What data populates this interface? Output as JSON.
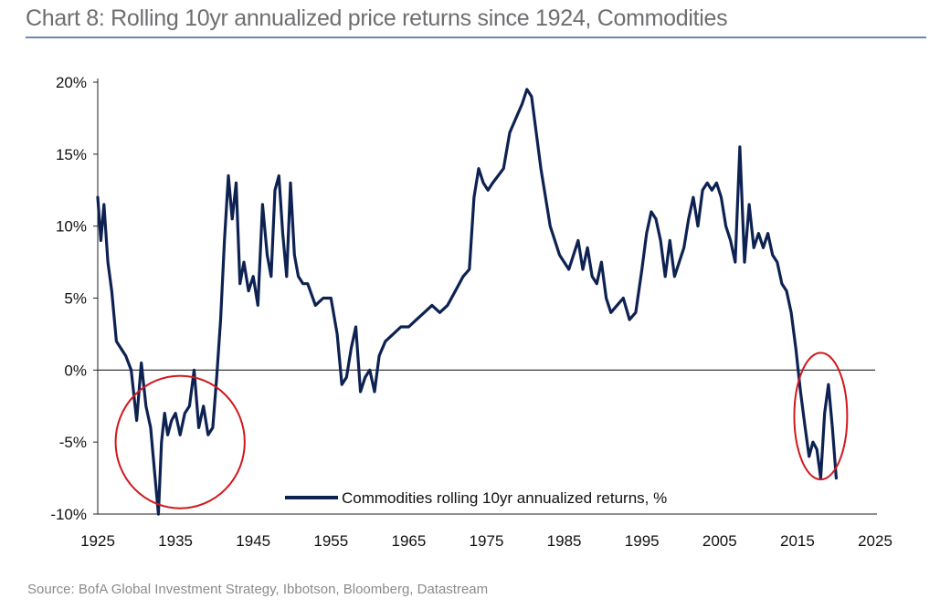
{
  "chart_data": {
    "type": "line",
    "title": "Chart 8: Rolling 10yr annualized price returns since 1924, Commodities",
    "source": "Source: BofA Global Investment Strategy, Ibbotson, Bloomberg, Datastream",
    "xlabel": "",
    "ylabel": "",
    "xlim": [
      1925,
      2025
    ],
    "ylim": [
      -10,
      20
    ],
    "x_ticks": [
      1925,
      1935,
      1945,
      1955,
      1965,
      1975,
      1985,
      1995,
      2005,
      2015,
      2025
    ],
    "y_ticks": [
      {
        "value": 20,
        "label": "20%"
      },
      {
        "value": 15,
        "label": "15%"
      },
      {
        "value": 10,
        "label": "10%"
      },
      {
        "value": 5,
        "label": "5%"
      },
      {
        "value": 0,
        "label": "0%"
      },
      {
        "value": -5,
        "label": "-5%"
      },
      {
        "value": -10,
        "label": "-10%"
      }
    ],
    "legend": "bottom-center",
    "series": [
      {
        "name": "Commodities rolling 10yr annualized returns, %",
        "color": "#0d2252",
        "x": [
          1925.0,
          1925.4,
          1925.8,
          1926.3,
          1926.8,
          1927.4,
          1928.0,
          1928.6,
          1929.3,
          1930.0,
          1930.6,
          1931.2,
          1931.8,
          1932.3,
          1932.8,
          1933.2,
          1933.6,
          1934.0,
          1934.5,
          1935.0,
          1935.6,
          1936.2,
          1936.8,
          1937.4,
          1938.0,
          1938.6,
          1939.2,
          1939.8,
          1940.3,
          1940.8,
          1941.3,
          1941.8,
          1942.3,
          1942.8,
          1943.3,
          1943.8,
          1944.4,
          1945.0,
          1945.6,
          1946.2,
          1946.8,
          1947.3,
          1947.8,
          1948.3,
          1948.8,
          1949.3,
          1949.8,
          1950.3,
          1950.8,
          1951.4,
          1952.0,
          1953.0,
          1954.0,
          1955.0,
          1955.8,
          1956.4,
          1957.0,
          1957.6,
          1958.2,
          1958.8,
          1959.4,
          1960.0,
          1960.6,
          1961.2,
          1962.0,
          1963.0,
          1964.0,
          1965.0,
          1966.0,
          1967.0,
          1968.0,
          1969.0,
          1970.0,
          1971.0,
          1972.0,
          1972.8,
          1973.4,
          1974.0,
          1974.6,
          1975.2,
          1975.8,
          1976.5,
          1977.2,
          1978.0,
          1978.8,
          1979.6,
          1980.2,
          1980.8,
          1981.4,
          1982.0,
          1982.6,
          1983.2,
          1983.8,
          1984.4,
          1985.0,
          1985.6,
          1986.2,
          1986.8,
          1987.4,
          1988.0,
          1988.6,
          1989.2,
          1989.8,
          1990.4,
          1991.0,
          1991.8,
          1992.6,
          1993.4,
          1994.2,
          1995.0,
          1995.6,
          1996.2,
          1996.8,
          1997.4,
          1998.0,
          1998.6,
          1999.2,
          1999.8,
          2000.4,
          2001.0,
          2001.6,
          2002.2,
          2002.8,
          2003.4,
          2004.0,
          2004.6,
          2005.2,
          2005.8,
          2006.4,
          2007.0,
          2007.6,
          2008.2,
          2008.8,
          2009.4,
          2010.0,
          2010.6,
          2011.2,
          2011.8,
          2012.4,
          2013.0,
          2013.6,
          2014.2,
          2014.8,
          2015.4,
          2016.0,
          2016.5,
          2017.0,
          2017.5,
          2018.0,
          2018.5,
          2019.0,
          2019.5,
          2020.0
        ],
        "values": [
          12.0,
          9.0,
          11.5,
          7.5,
          5.5,
          2.0,
          1.5,
          1.0,
          0.0,
          -3.5,
          0.5,
          -2.5,
          -4.0,
          -7.0,
          -10.0,
          -5.0,
          -3.0,
          -4.5,
          -3.5,
          -3.0,
          -4.5,
          -3.0,
          -2.5,
          0.0,
          -4.0,
          -2.5,
          -4.5,
          -4.0,
          -0.5,
          3.5,
          9.0,
          13.5,
          10.5,
          13.0,
          6.0,
          7.5,
          5.5,
          6.5,
          4.5,
          11.5,
          8.0,
          6.5,
          12.5,
          13.5,
          9.5,
          6.5,
          13.0,
          8.0,
          6.5,
          6.0,
          6.0,
          4.5,
          5.0,
          5.0,
          2.5,
          -1.0,
          -0.5,
          1.5,
          3.0,
          -1.5,
          -0.5,
          0.0,
          -1.5,
          1.0,
          2.0,
          2.5,
          3.0,
          3.0,
          3.5,
          4.0,
          4.5,
          4.0,
          4.5,
          5.5,
          6.5,
          7.0,
          12.0,
          14.0,
          13.0,
          12.5,
          13.0,
          13.5,
          14.0,
          16.5,
          17.5,
          18.5,
          19.5,
          19.0,
          16.5,
          14.0,
          12.0,
          10.0,
          9.0,
          8.0,
          7.5,
          7.0,
          8.0,
          9.0,
          7.0,
          8.5,
          6.5,
          6.0,
          7.5,
          5.0,
          4.0,
          4.5,
          5.0,
          3.5,
          4.0,
          7.0,
          9.5,
          11.0,
          10.5,
          9.0,
          6.5,
          9.0,
          6.5,
          7.5,
          8.5,
          10.5,
          12.0,
          10.0,
          12.5,
          13.0,
          12.5,
          13.0,
          12.0,
          10.0,
          9.0,
          7.5,
          15.5,
          7.5,
          11.5,
          8.5,
          9.5,
          8.5,
          9.5,
          8.0,
          7.5,
          6.0,
          5.5,
          4.0,
          1.5,
          -1.5,
          -4.0,
          -6.0,
          -5.0,
          -5.5,
          -7.5,
          -3.0,
          -1.0,
          -4.0,
          -7.5
        ]
      }
    ],
    "annotations": [
      {
        "type": "ellipse",
        "around": "1930-1940 lows",
        "color": "#d0181e"
      },
      {
        "type": "ellipse",
        "around": "2015-2020 lows",
        "color": "#d0181e"
      }
    ]
  }
}
